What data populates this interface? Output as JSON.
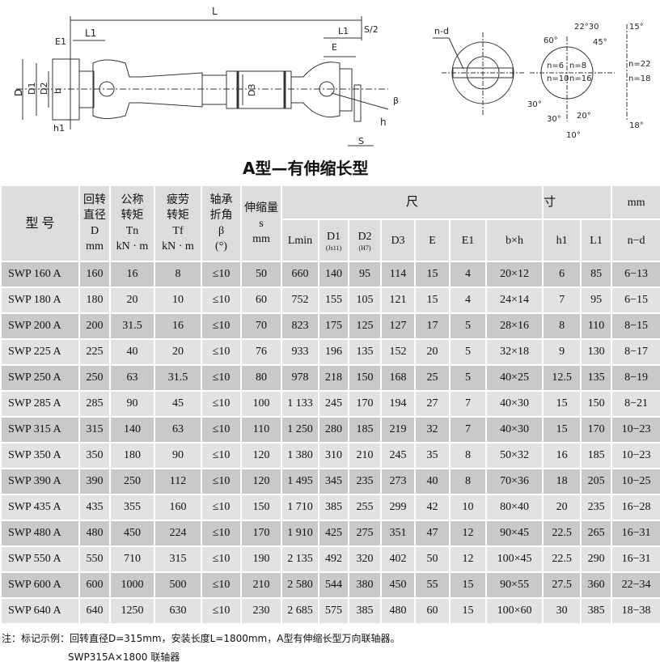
{
  "drawing": {
    "labels": {
      "L": "L",
      "L1": "L1",
      "E1": "E1",
      "D": "D",
      "D1": "D1",
      "D2": "D2",
      "b": "b",
      "h1": "h1",
      "D3": "D3",
      "L1r": "L1",
      "E": "E",
      "S2": "S/2",
      "h": "h",
      "S": "S",
      "beta": "β",
      "nd": "n-d",
      "a2230": "22°30",
      "a45": "45°",
      "a60": "60°",
      "n6": "n=6",
      "n8": "n=8",
      "n10": "n=10",
      "n16": "n=16",
      "a30a": "30°",
      "a30b": "30°",
      "a20": "20°",
      "a10": "10°",
      "a15": "15°",
      "n22": "n=22",
      "n18": "n=18",
      "a18": "18°"
    }
  },
  "title": "A型—有伸缩长型",
  "table": {
    "header": {
      "type": "型 号",
      "D": [
        "回转",
        "直径",
        "D",
        "mm"
      ],
      "Tn": [
        "公称",
        "转矩",
        "Tn",
        "kN · m"
      ],
      "Tf": [
        "疲劳",
        "转矩",
        "Tf",
        "kN · m"
      ],
      "beta": [
        "轴承",
        "折角",
        "β",
        "(°)"
      ],
      "s": [
        "伸缩量",
        "s",
        "mm"
      ],
      "dim_left": "尺",
      "dim_mid": "寸",
      "dim_unit": "mm",
      "sub": [
        "Lmin",
        "D1",
        "D2",
        "D3",
        "E",
        "E1",
        "b×h",
        "h1",
        "L1",
        "n−d"
      ],
      "D1_note": "(Js11)",
      "D2_note": "(H7)"
    },
    "rows": [
      [
        "SWP 160 A",
        "160",
        "16",
        "8",
        "≤10",
        "50",
        "660",
        "140",
        "95",
        "114",
        "15",
        "4",
        "20×12",
        "6",
        "85",
        "6−13"
      ],
      [
        "SWP 180 A",
        "180",
        "20",
        "10",
        "≤10",
        "60",
        "752",
        "155",
        "105",
        "121",
        "15",
        "4",
        "24×14",
        "7",
        "95",
        "6−15"
      ],
      [
        "SWP 200 A",
        "200",
        "31.5",
        "16",
        "≤10",
        "70",
        "823",
        "175",
        "125",
        "127",
        "17",
        "5",
        "28×16",
        "8",
        "110",
        "8−15"
      ],
      [
        "SWP 225 A",
        "225",
        "40",
        "20",
        "≤10",
        "76",
        "933",
        "196",
        "135",
        "152",
        "20",
        "5",
        "32×18",
        "9",
        "130",
        "8−17"
      ],
      [
        "SWP 250 A",
        "250",
        "63",
        "31.5",
        "≤10",
        "80",
        "978",
        "218",
        "150",
        "168",
        "25",
        "5",
        "40×25",
        "12.5",
        "135",
        "8−19"
      ],
      [
        "SWP 285 A",
        "285",
        "90",
        "45",
        "≤10",
        "100",
        "1 133",
        "245",
        "170",
        "194",
        "27",
        "7",
        "40×30",
        "15",
        "150",
        "8−21"
      ],
      [
        "SWP 315 A",
        "315",
        "140",
        "63",
        "≤10",
        "110",
        "1 250",
        "280",
        "185",
        "219",
        "32",
        "7",
        "40×30",
        "15",
        "170",
        "10−23"
      ],
      [
        "SWP 350 A",
        "350",
        "180",
        "90",
        "≤10",
        "120",
        "1 380",
        "310",
        "210",
        "245",
        "35",
        "8",
        "50×32",
        "16",
        "185",
        "10−23"
      ],
      [
        "SWP 390 A",
        "390",
        "250",
        "112",
        "≤10",
        "120",
        "1 495",
        "345",
        "235",
        "273",
        "40",
        "8",
        "70×36",
        "18",
        "205",
        "10−25"
      ],
      [
        "SWP 435 A",
        "435",
        "355",
        "160",
        "≤10",
        "150",
        "1 710",
        "385",
        "255",
        "299",
        "42",
        "10",
        "80×40",
        "20",
        "235",
        "16−28"
      ],
      [
        "SWP 480 A",
        "480",
        "450",
        "224",
        "≤10",
        "170",
        "1 910",
        "425",
        "275",
        "351",
        "47",
        "12",
        "90×45",
        "22.5",
        "265",
        "16−31"
      ],
      [
        "SWP 550 A",
        "550",
        "710",
        "315",
        "≤10",
        "190",
        "2 135",
        "492",
        "320",
        "402",
        "50",
        "12",
        "100×45",
        "22.5",
        "290",
        "16−31"
      ],
      [
        "SWP 600 A",
        "600",
        "1000",
        "500",
        "≤10",
        "210",
        "2 580",
        "544",
        "380",
        "450",
        "55",
        "15",
        "90×55",
        "27.5",
        "360",
        "22−34"
      ],
      [
        "SWP 640 A",
        "640",
        "1250",
        "630",
        "≤10",
        "230",
        "2 685",
        "575",
        "385",
        "480",
        "60",
        "15",
        "100×60",
        "30",
        "385",
        "18−38"
      ]
    ]
  },
  "note": {
    "line1": "注：标记示例：回转直径D=315mm，安装长度L=1800mm，A型有伸缩长型万向联轴器。",
    "line2": "SWP315A×1800  联轴器"
  }
}
